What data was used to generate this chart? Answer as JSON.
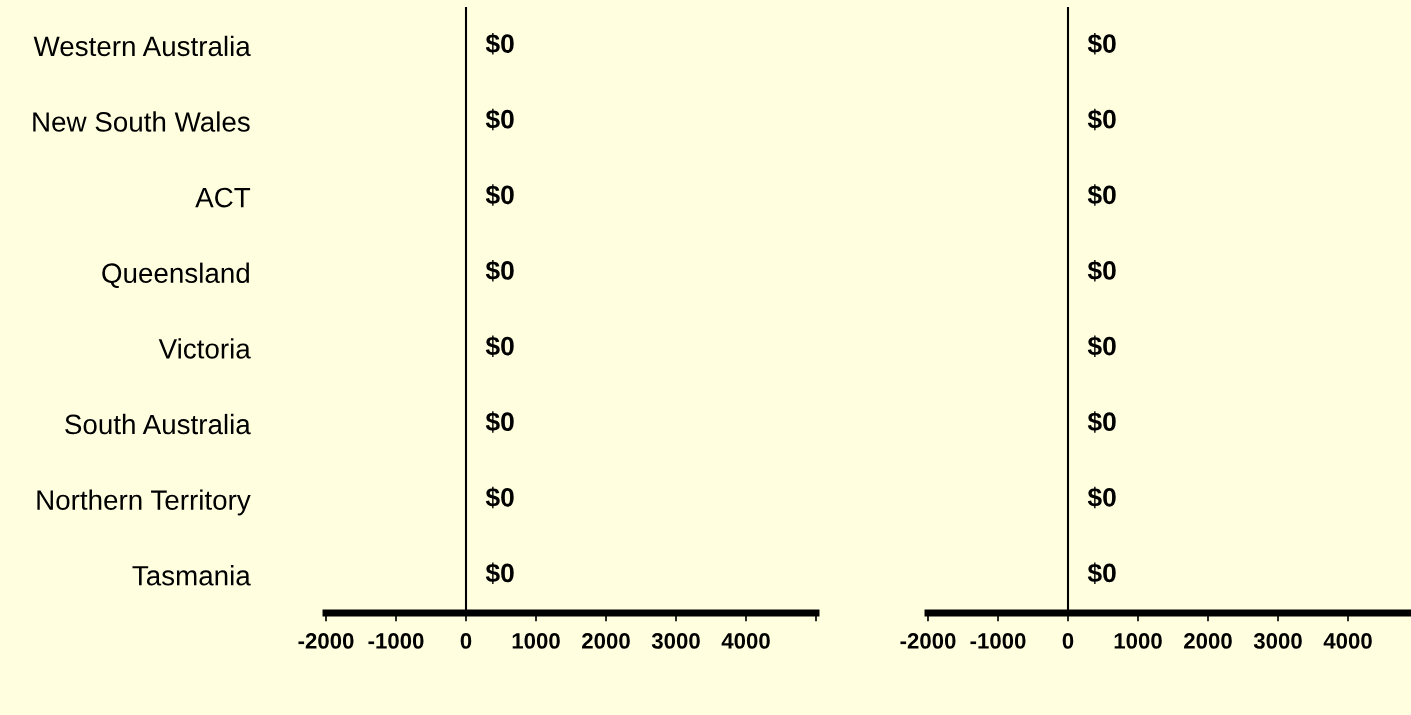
{
  "chart_data": [
    {
      "type": "bar",
      "orientation": "horizontal",
      "categories": [
        "Western Australia",
        "New South Wales",
        "ACT",
        "Queensland",
        "Victoria",
        "South Australia",
        "Northern Territory",
        "Tasmania"
      ],
      "values": [
        0,
        0,
        0,
        0,
        0,
        0,
        0,
        0
      ],
      "value_labels": [
        "$0",
        "$0",
        "$0",
        "$0",
        "$0",
        "$0",
        "$0",
        "$0"
      ],
      "xlim": [
        -2000,
        5000
      ],
      "xticks": [
        -2000,
        -1000,
        0,
        1000,
        2000,
        3000,
        4000,
        {
          "value": 5000,
          "label": null
        }
      ],
      "legend": false
    },
    {
      "type": "bar",
      "orientation": "horizontal",
      "categories": [
        null,
        null,
        null,
        null,
        null,
        null,
        null,
        null
      ],
      "values": [
        0,
        0,
        0,
        0,
        0,
        0,
        0,
        0
      ],
      "value_labels": [
        "$0",
        "$0",
        "$0",
        "$0",
        "$0",
        "$0",
        "$0",
        "$0"
      ],
      "xlim": [
        -2000,
        4900
      ],
      "xticks": [
        -2000,
        -1000,
        0,
        1000,
        2000,
        3000,
        4000
      ],
      "tick_labels": "x",
      "legend": false
    }
  ]
}
